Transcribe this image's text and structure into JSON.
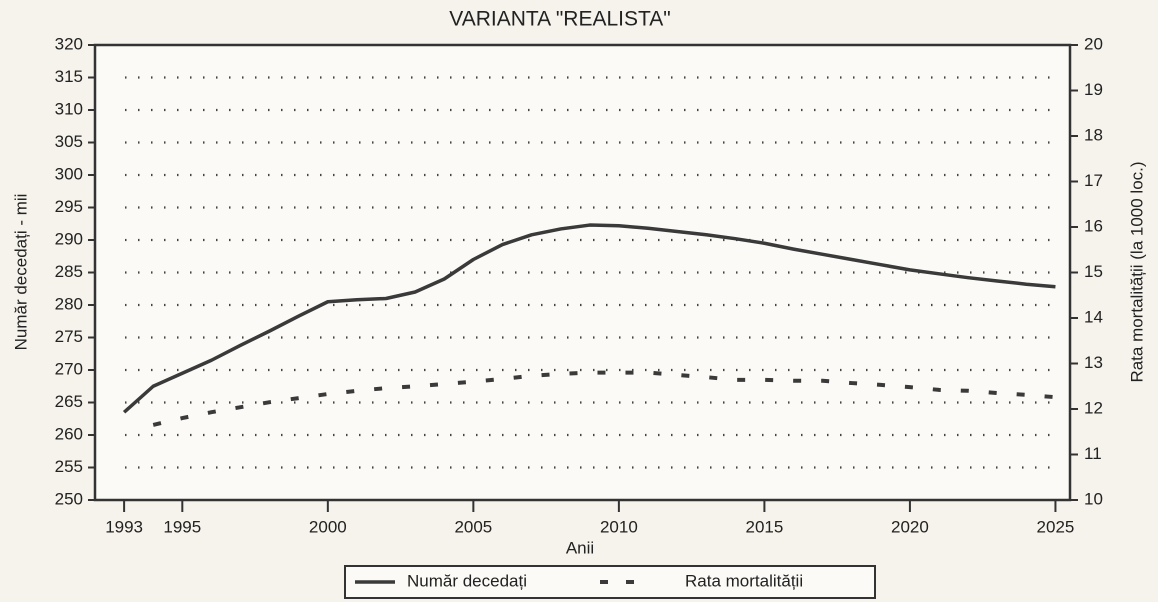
{
  "chart_data": {
    "type": "line",
    "title": "VARIANTA \"REALISTA\"",
    "xlabel": "Anii",
    "ylabel": "Număr decedați - mii",
    "y2label": "Rata mortalității (la 1000 loc.)",
    "x": [
      1993,
      1994,
      1995,
      1996,
      1997,
      1998,
      1999,
      2000,
      2001,
      2002,
      2003,
      2004,
      2005,
      2006,
      2007,
      2008,
      2009,
      2010,
      2011,
      2012,
      2013,
      2014,
      2015,
      2016,
      2017,
      2018,
      2019,
      2020,
      2021,
      2022,
      2023,
      2024,
      2025
    ],
    "series": [
      {
        "name": "Număr decedați",
        "color": "#3a3a3a",
        "style": "solid",
        "values": [
          263.5,
          267.5,
          269.5,
          271.5,
          273.8,
          276,
          278.3,
          280.5,
          280.8,
          281,
          282,
          284,
          287,
          289.3,
          290.8,
          291.7,
          292.3,
          292.2,
          291.8,
          291.3,
          290.8,
          290.2,
          289.5,
          288.6,
          287.8,
          287,
          286.2,
          285.4,
          284.8,
          284.2,
          283.7,
          283.2,
          282.8
        ]
      },
      {
        "name": "Rata mortalității",
        "color": "#3a3a3a",
        "style": "dashed",
        "axis": "y2",
        "values": [
          null,
          11.65,
          11.8,
          11.93,
          12.04,
          12.15,
          12.24,
          12.33,
          12.4,
          12.46,
          12.5,
          12.55,
          12.6,
          12.66,
          12.73,
          12.77,
          12.8,
          12.8,
          12.8,
          12.75,
          12.7,
          12.64,
          12.64,
          12.62,
          12.62,
          12.57,
          12.53,
          12.48,
          12.42,
          12.4,
          12.35,
          12.31,
          12.26
        ]
      }
    ],
    "xlim": [
      1992,
      2025.5
    ],
    "xticks": [
      1993,
      1995,
      2000,
      2005,
      2010,
      2015,
      2020,
      2025
    ],
    "ylim": [
      250,
      320
    ],
    "yticks": [
      250,
      255,
      260,
      265,
      270,
      275,
      280,
      285,
      290,
      295,
      300,
      305,
      310,
      315,
      320
    ],
    "y2lim": [
      10,
      20
    ],
    "y2ticks": [
      10,
      11,
      12,
      13,
      14,
      15,
      16,
      17,
      18,
      19,
      20
    ],
    "grid": true,
    "legend": "bottom"
  }
}
